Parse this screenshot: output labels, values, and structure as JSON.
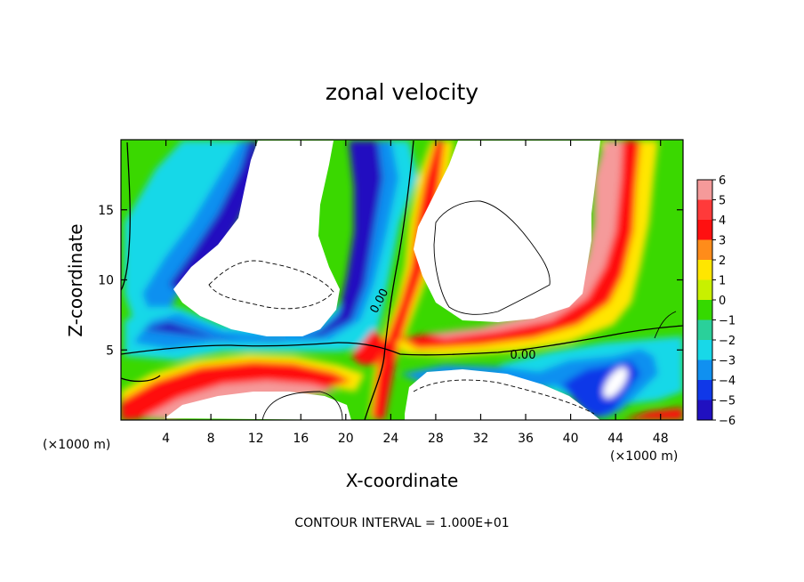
{
  "chart_data": {
    "type": "heatmap",
    "title": "zonal velocity",
    "xlabel": "X-coordinate",
    "ylabel": "Z-coordinate",
    "x_units": "(×1000 m)",
    "x_units_right": "(×1000 m)",
    "xlim": [
      0,
      50
    ],
    "ylim": [
      0,
      20
    ],
    "xticks": [
      4,
      8,
      12,
      16,
      20,
      24,
      28,
      32,
      36,
      40,
      44,
      48
    ],
    "yticks": [
      5,
      10,
      15
    ],
    "colorbar": {
      "levels": [
        6,
        5,
        4,
        3,
        2,
        1,
        0,
        -1,
        -2,
        -3,
        -4,
        -5,
        -6
      ],
      "colors": [
        "#f59a9a",
        "#ff3a3a",
        "#ff1010",
        "#ff8c1a",
        "#ffe600",
        "#c8f000",
        "#35d900",
        "#2ad09a",
        "#18d8e8",
        "#1090f0",
        "#1038e8",
        "#2010c0",
        "#6a1a9a"
      ]
    },
    "contour_labels": [
      "0.00",
      "0.00"
    ],
    "contour_interval_text": "CONTOUR INTERVAL = 1.000E+01",
    "grid": false
  }
}
